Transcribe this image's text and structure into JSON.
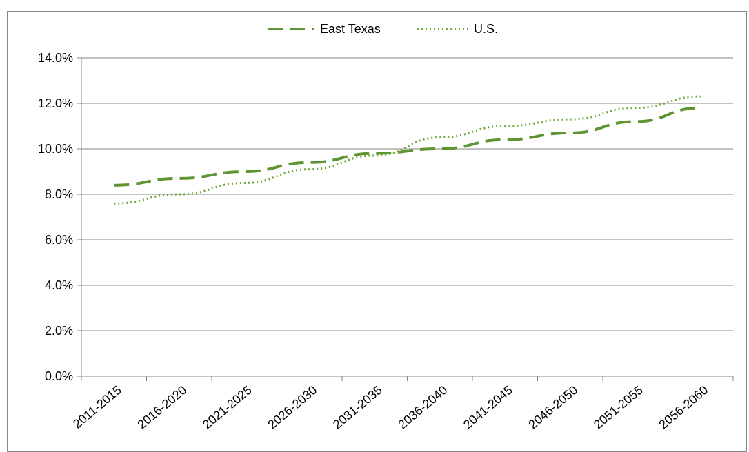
{
  "chart_data": {
    "type": "line",
    "title": "",
    "xlabel": "",
    "ylabel": "",
    "categories": [
      "2011-2015",
      "2016-2020",
      "2021-2025",
      "2026-2030",
      "2031-2035",
      "2036-2040",
      "2041-2045",
      "2046-2050",
      "2051-2055",
      "2056-2060"
    ],
    "ylim": [
      0,
      14
    ],
    "yticks": [
      "0.0%",
      "2.0%",
      "4.0%",
      "6.0%",
      "8.0%",
      "10.0%",
      "12.0%",
      "14.0%"
    ],
    "grid": true,
    "legend_position": "top-center",
    "series": [
      {
        "name": "East Texas",
        "style": "dashed",
        "color": "#5e9432",
        "values": [
          8.4,
          8.7,
          9.0,
          9.4,
          9.8,
          10.0,
          10.4,
          10.7,
          11.2,
          11.8
        ]
      },
      {
        "name": "U.S.",
        "style": "dotted",
        "color": "#6aa83a",
        "values": [
          7.6,
          8.0,
          8.5,
          9.1,
          9.7,
          10.5,
          11.0,
          11.3,
          11.8,
          12.3
        ]
      }
    ]
  }
}
